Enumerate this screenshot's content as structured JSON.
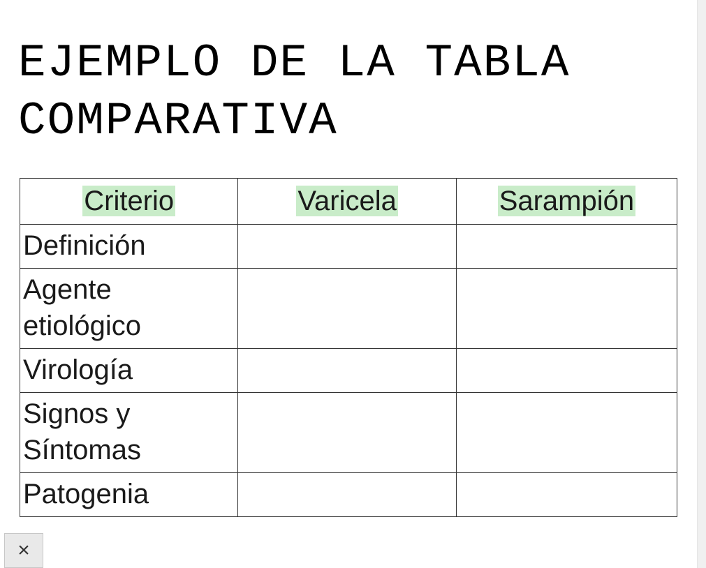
{
  "title": "EJEMPLO DE LA TABLA COMPARATIVA",
  "table": {
    "columns": [
      "Criterio",
      "Varicela",
      "Sarampión"
    ],
    "column_widths_pct": [
      33.2,
      33.2,
      33.6
    ],
    "header_highlight_color": "#c9ecc9",
    "border_color": "#333333",
    "header_fontsize": 40,
    "cell_fontsize": 40,
    "header_align": "center",
    "cell_align": "left",
    "rows": [
      [
        "Definición",
        "",
        ""
      ],
      [
        "Agente etiológico",
        "",
        ""
      ],
      [
        "Virología",
        "",
        ""
      ],
      [
        "Signos y Síntomas",
        "",
        ""
      ],
      [
        "Patogenia",
        "",
        ""
      ]
    ]
  },
  "close_button_label": "×",
  "colors": {
    "background": "#ffffff",
    "text": "#1a1a1a",
    "scrollbar_track": "#f0f0f0",
    "button_bg": "#e9e9e9",
    "button_border": "#c7c7c7"
  },
  "title_font": {
    "family": "Courier New",
    "size": 66,
    "weight": "normal"
  }
}
